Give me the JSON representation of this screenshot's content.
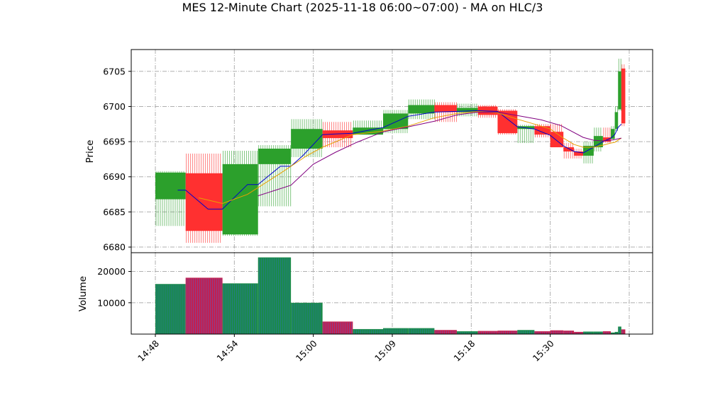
{
  "chart_data": {
    "type": "candlestick",
    "title": "MES 12-Minute Chart (2025-11-18 06:00~07:00) - MA on HLC/3",
    "xlabel": "",
    "ylabel": "Price",
    "volume_label": "Volume",
    "price_ylim": [
      6679.2,
      6708.1
    ],
    "volume_ylim": [
      0,
      26000
    ],
    "price_ticks": [
      6680,
      6685,
      6690,
      6695,
      6700,
      6705
    ],
    "volume_ticks": [
      10000,
      20000
    ],
    "volume_tick_labels": [
      "10000",
      "20000"
    ],
    "x_ticks": [
      {
        "label": "14:48",
        "x": 0
      },
      {
        "label": "14:54",
        "x": 6
      },
      {
        "label": "15:00",
        "x": 12
      },
      {
        "label": "15:09",
        "x": 18
      },
      {
        "label": "15:18",
        "x": 24
      },
      {
        "label": "15:30",
        "x": 30
      },
      {
        "label": "",
        "x": 36
      }
    ],
    "grid": true,
    "colors": {
      "up": "#2ca02c",
      "down": "#ff3030",
      "volume_up": "#1a8a4a",
      "volume_down": "#c22050",
      "ma_fast": "#0000cc",
      "ma_mid": "#e8a000",
      "ma_slow": "#800080"
    },
    "candles": [
      {
        "x0": 0,
        "x1": 2.3,
        "open": 6686.8,
        "high": 6690.8,
        "low": 6683.0,
        "close": 6690.6,
        "volume": 16000
      },
      {
        "x0": 2.3,
        "x1": 5.1,
        "open": 6690.5,
        "high": 6693.3,
        "low": 6680.6,
        "close": 6682.3,
        "volume": 18000
      },
      {
        "x0": 5.1,
        "x1": 7.8,
        "open": 6681.8,
        "high": 6693.7,
        "low": 6681.6,
        "close": 6691.8,
        "volume": 16200
      },
      {
        "x0": 7.8,
        "x1": 10.3,
        "open": 6691.8,
        "high": 6694.5,
        "low": 6685.8,
        "close": 6694.0,
        "volume": 24500
      },
      {
        "x0": 10.3,
        "x1": 12.7,
        "open": 6694.0,
        "high": 6698.2,
        "low": 6692.8,
        "close": 6696.8,
        "volume": 10000
      },
      {
        "x0": 12.7,
        "x1": 15.0,
        "open": 6696.6,
        "high": 6697.8,
        "low": 6694.2,
        "close": 6695.5,
        "volume": 4000
      },
      {
        "x0": 15.0,
        "x1": 17.3,
        "open": 6696.0,
        "high": 6698.0,
        "low": 6696.0,
        "close": 6697.0,
        "volume": 1600
      },
      {
        "x0": 17.3,
        "x1": 19.2,
        "open": 6696.8,
        "high": 6699.5,
        "low": 6696.2,
        "close": 6699.0,
        "volume": 1900
      },
      {
        "x0": 19.2,
        "x1": 21.2,
        "open": 6699.0,
        "high": 6701.0,
        "low": 6698.2,
        "close": 6700.2,
        "volume": 1900
      },
      {
        "x0": 21.2,
        "x1": 22.9,
        "open": 6700.2,
        "high": 6700.6,
        "low": 6697.8,
        "close": 6699.2,
        "volume": 1300
      },
      {
        "x0": 22.9,
        "x1": 24.5,
        "open": 6699.2,
        "high": 6700.4,
        "low": 6698.6,
        "close": 6699.8,
        "volume": 900
      },
      {
        "x0": 24.5,
        "x1": 26.0,
        "open": 6700.0,
        "high": 6700.2,
        "low": 6698.4,
        "close": 6698.8,
        "volume": 1000
      },
      {
        "x0": 26.0,
        "x1": 27.5,
        "open": 6699.4,
        "high": 6699.6,
        "low": 6696.0,
        "close": 6696.2,
        "volume": 1100
      },
      {
        "x0": 27.5,
        "x1": 28.8,
        "open": 6696.8,
        "high": 6697.4,
        "low": 6694.8,
        "close": 6697.2,
        "volume": 1300
      },
      {
        "x0": 28.8,
        "x1": 30.0,
        "open": 6697.2,
        "high": 6697.5,
        "low": 6695.6,
        "close": 6696.0,
        "volume": 900
      },
      {
        "x0": 30.0,
        "x1": 31.0,
        "open": 6696.4,
        "high": 6697.5,
        "low": 6694.2,
        "close": 6694.2,
        "volume": 1200
      },
      {
        "x0": 31.0,
        "x1": 31.8,
        "open": 6694.2,
        "high": 6694.8,
        "low": 6692.6,
        "close": 6693.6,
        "volume": 1100
      },
      {
        "x0": 31.8,
        "x1": 32.5,
        "open": 6693.6,
        "high": 6694.0,
        "low": 6692.6,
        "close": 6693.0,
        "volume": 700
      },
      {
        "x0": 32.5,
        "x1": 33.3,
        "open": 6693.0,
        "high": 6695.0,
        "low": 6691.9,
        "close": 6694.4,
        "volume": 800
      },
      {
        "x0": 33.3,
        "x1": 34.0,
        "open": 6694.2,
        "high": 6697.0,
        "low": 6693.6,
        "close": 6695.8,
        "volume": 800
      },
      {
        "x0": 34.0,
        "x1": 34.6,
        "open": 6695.6,
        "high": 6697.0,
        "low": 6694.8,
        "close": 6695.0,
        "volume": 900
      },
      {
        "x0": 34.6,
        "x1": 34.9,
        "open": 6695.4,
        "high": 6697.2,
        "low": 6695.2,
        "close": 6696.8,
        "volume": 500
      },
      {
        "x0": 34.9,
        "x1": 35.15,
        "open": 6696.8,
        "high": 6700.0,
        "low": 6696.5,
        "close": 6699.2,
        "volume": 700
      },
      {
        "x0": 35.15,
        "x1": 35.4,
        "open": 6699.6,
        "high": 6706.8,
        "low": 6699.4,
        "close": 6705.0,
        "volume": 2400
      },
      {
        "x0": 35.4,
        "x1": 35.7,
        "open": 6705.4,
        "high": 6706.0,
        "low": 6697.2,
        "close": 6697.6,
        "volume": 1500
      }
    ],
    "series": [
      {
        "name": "",
        "color_key": "ma_fast",
        "x": [
          1.7,
          2.3,
          4.0,
          5.1,
          7.0,
          7.8,
          9.5,
          10.3,
          11.2,
          12.7,
          13.7,
          15.0,
          17.3,
          19.2,
          21.2,
          22.9,
          24.5,
          26.0,
          27.5,
          28.8,
          30.0,
          31.0,
          31.8,
          32.5,
          33.3,
          34.0,
          34.6,
          34.9,
          35.15,
          35.4
        ],
        "values": [
          6688.1,
          6688.1,
          6685.4,
          6685.4,
          6688.9,
          6688.9,
          6691.5,
          6691.5,
          6693.0,
          6696.0,
          6696.1,
          6696.2,
          6697.0,
          6698.6,
          6699.2,
          6699.3,
          6699.4,
          6699.3,
          6697.1,
          6696.8,
          6695.9,
          6694.4,
          6693.6,
          6693.4,
          6694.2,
          6695.0,
          6695.5,
          6696.0,
          6697.0,
          6697.5
        ]
      },
      {
        "name": "",
        "color_key": "ma_mid",
        "x": [
          3.3,
          5.1,
          7.0,
          9.5,
          11.5,
          12.7,
          15.0,
          17.3,
          19.2,
          21.2,
          22.9,
          24.5,
          26.0,
          27.5,
          28.8,
          30.0,
          31.0,
          31.8,
          32.5,
          33.3,
          34.0,
          34.6,
          34.9,
          35.15,
          35.4
        ],
        "values": [
          6687.0,
          6686.2,
          6687.5,
          6690.5,
          6693.0,
          6694.2,
          6696.0,
          6696.5,
          6697.2,
          6698.4,
          6699.0,
          6699.3,
          6699.1,
          6698.2,
          6697.5,
          6696.8,
          6695.5,
          6694.6,
          6694.2,
          6694.2,
          6694.5,
          6694.8,
          6694.9,
          6695.2,
          6695.5
        ]
      },
      {
        "name": "",
        "color_key": "ma_slow",
        "x": [
          7.8,
          10.3,
          12.0,
          13.7,
          15.3,
          17.3,
          19.2,
          21.2,
          22.9,
          24.5,
          26.0,
          27.5,
          29.3,
          30.8,
          32.5,
          33.3,
          34.0,
          34.6,
          34.9,
          35.15,
          35.4
        ],
        "values": [
          6687.3,
          6688.8,
          6691.8,
          6693.5,
          6694.9,
          6696.4,
          6697.1,
          6697.9,
          6698.8,
          6699.2,
          6699.2,
          6698.7,
          6698.1,
          6697.3,
          6695.6,
          6695.2,
          6695.1,
          6695.2,
          6695.3,
          6695.4,
          6695.5
        ]
      }
    ]
  }
}
